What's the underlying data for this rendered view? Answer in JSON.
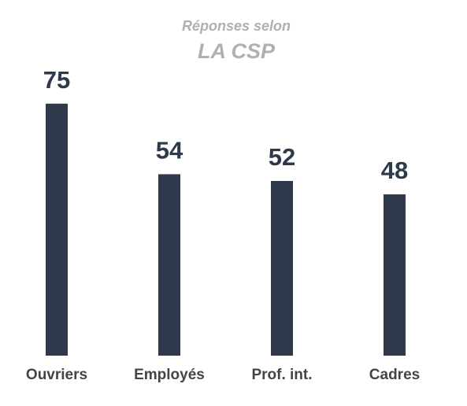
{
  "chart_data": {
    "type": "bar",
    "title": "Réponses selon",
    "subtitle": "LA CSP",
    "categories": [
      "Ouvriers",
      "Employés",
      "Prof. int.",
      "Cadres"
    ],
    "values": [
      75,
      54,
      52,
      48
    ],
    "color": "#2e3a4c"
  }
}
